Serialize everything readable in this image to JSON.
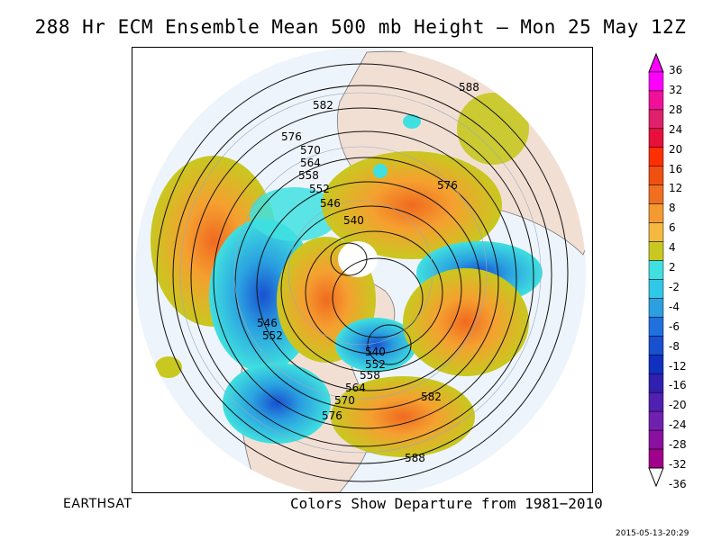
{
  "title": "288 Hr ECM Ensemble Mean 500 mb Height — Mon 25 May 12Z",
  "footer": {
    "source": "EARTHSAT",
    "note": "Colors Show Departure from 1981−2010",
    "timestamp": "2015-05-13-20:29"
  },
  "colorbar": {
    "labels": [
      "36",
      "32",
      "28",
      "24",
      "20",
      "16",
      "12",
      "8",
      "6",
      "4",
      "2",
      "-2",
      "-4",
      "-6",
      "-8",
      "-12",
      "-16",
      "-20",
      "-24",
      "-28",
      "-32",
      "-36"
    ],
    "colors": [
      "#ff00ff",
      "#f0109a",
      "#e0206a",
      "#e8103a",
      "#ff3000",
      "#f05010",
      "#f07020",
      "#f59a30",
      "#f5b840",
      "#c8c820",
      "#ffffff",
      "#40e0e0",
      "#30c8e8",
      "#2aa0e0",
      "#2070e0",
      "#1850d0",
      "#1030c0",
      "#3020b0",
      "#5020b0",
      "#7020b0",
      "#8a10a0",
      "#a0008a"
    ]
  },
  "contour_labels": [
    {
      "text": "588"
    },
    {
      "text": "582"
    },
    {
      "text": "576"
    },
    {
      "text": "570"
    },
    {
      "text": "564"
    },
    {
      "text": "558"
    },
    {
      "text": "552"
    },
    {
      "text": "546"
    },
    {
      "text": "540"
    },
    {
      "text": "576"
    },
    {
      "text": "546"
    },
    {
      "text": "552"
    },
    {
      "text": "540"
    },
    {
      "text": "552"
    },
    {
      "text": "558"
    },
    {
      "text": "564"
    },
    {
      "text": "570"
    },
    {
      "text": "576"
    },
    {
      "text": "582"
    },
    {
      "text": "588"
    }
  ]
}
